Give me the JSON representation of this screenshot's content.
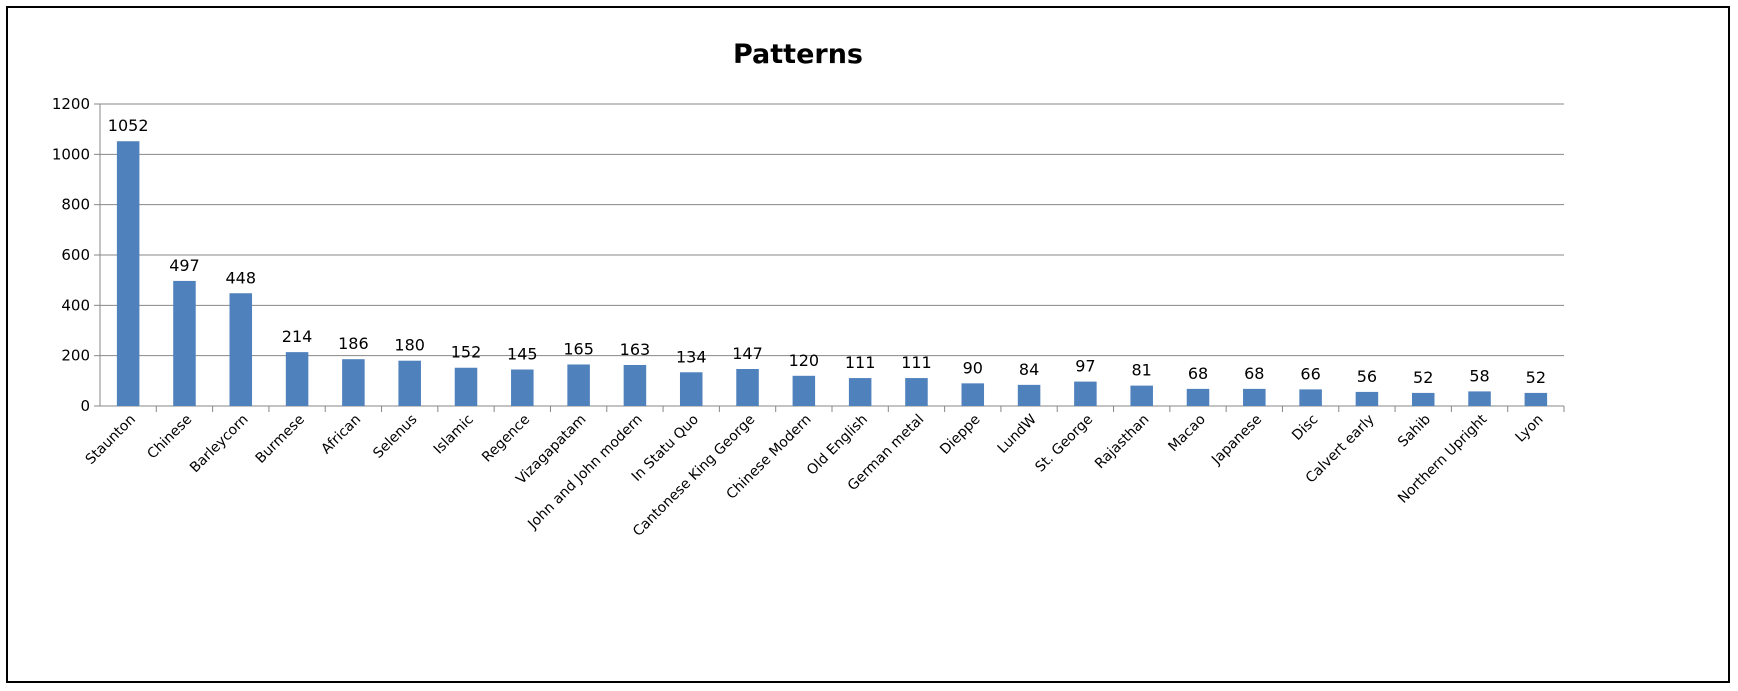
{
  "chart_data": {
    "type": "bar",
    "title": "Patterns",
    "xlabel": "",
    "ylabel": "",
    "ylim": [
      0,
      1200
    ],
    "yticks": [
      0,
      200,
      400,
      600,
      800,
      1000,
      1200
    ],
    "grid": true,
    "legend": "none",
    "bar_color": "#4F81BD",
    "grid_color": "#878787",
    "categories": [
      "Staunton",
      "Chinese",
      "Barleycorn",
      "Burmese",
      "African",
      "Selenus",
      "Islamic",
      "Regence",
      "Vizagapatam",
      "John and John modern",
      "In Statu Quo",
      "Cantonese King George",
      "Chinese Modern",
      "Old English",
      "German metal",
      "Dieppe",
      "LundW",
      "St. George",
      "Rajasthan",
      "Macao",
      "Japanese",
      "Disc",
      "Calvert early",
      "Sahib",
      "Northern Upright",
      "Lyon"
    ],
    "values": [
      1052,
      497,
      448,
      214,
      186,
      180,
      152,
      145,
      165,
      163,
      134,
      147,
      120,
      111,
      111,
      90,
      84,
      97,
      81,
      68,
      68,
      66,
      56,
      52,
      58,
      52
    ]
  }
}
